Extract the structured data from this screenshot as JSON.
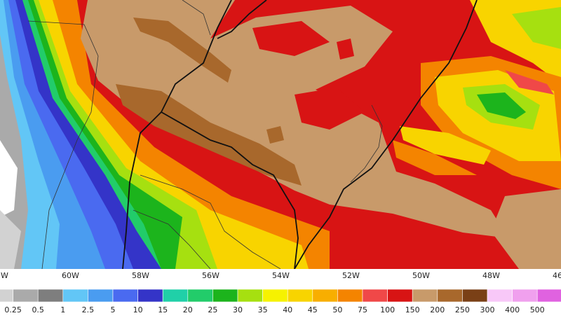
{
  "map": {
    "longitude_labels": [
      "W",
      "60W",
      "58W",
      "56W",
      "54W",
      "52W",
      "50W",
      "48W",
      "46"
    ],
    "legend": {
      "labels": [
        "0.25",
        "0.5",
        "1",
        "2.5",
        "5",
        "10",
        "15",
        "20",
        "25",
        "30",
        "35",
        "40",
        "45",
        "50",
        "75",
        "100",
        "150",
        "200",
        "250",
        "300",
        "400",
        "500"
      ],
      "colors": [
        "#d2d2d2",
        "#aaaaaa",
        "#7e7e7e",
        "#62c6f6",
        "#4a9cf0",
        "#4a6af0",
        "#3434c8",
        "#20d0a8",
        "#22cc6a",
        "#1cb41c",
        "#a6e010",
        "#f6f200",
        "#f8d400",
        "#f8ae00",
        "#f48400",
        "#f04848",
        "#d81414",
        "#c89a6a",
        "#a8682c",
        "#7a4016",
        "#f8c8f8",
        "#f0a0ee",
        "#e062e0",
        "#a01ea0"
      ]
    }
  }
}
